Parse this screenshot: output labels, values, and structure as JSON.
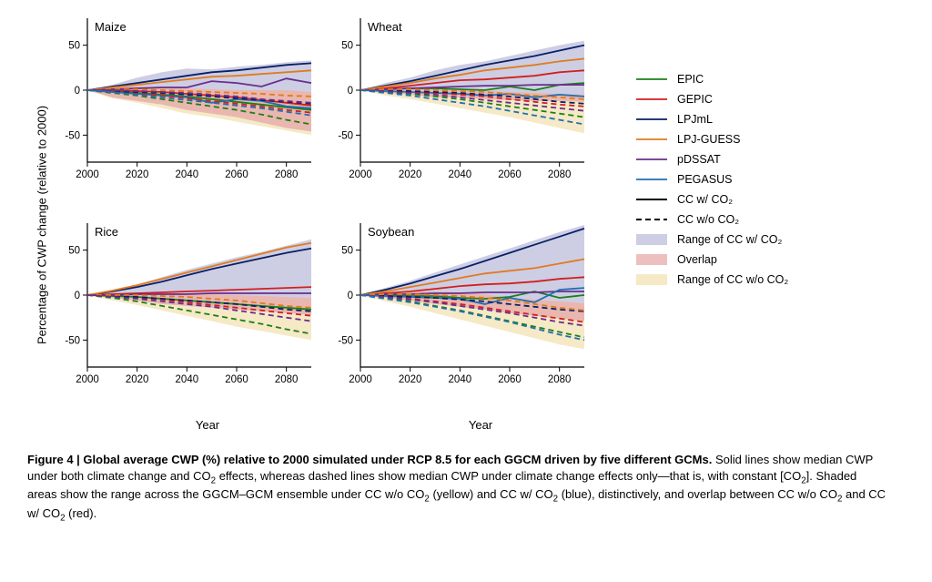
{
  "figure": {
    "ylabel": "Percentage of CWP change (relative to 2000)",
    "xlabel": "Year",
    "xlim": [
      2000,
      2090
    ],
    "ylim": [
      -80,
      80
    ],
    "xticks": [
      2000,
      2020,
      2040,
      2060,
      2080
    ],
    "yticks": [
      -50,
      0,
      50
    ],
    "x_values": [
      2000,
      2010,
      2020,
      2030,
      2040,
      2050,
      2060,
      2070,
      2080,
      2090
    ],
    "background_color": "#ffffff",
    "axis_color": "#000000",
    "line_width_solid": 1.8,
    "line_width_dashed": 1.8,
    "dash_pattern": "6,4",
    "panel_title_fontsize": 13,
    "tick_fontsize": 11.5,
    "label_fontsize": 13,
    "models": {
      "EPIC": {
        "color": "#1b7f1b"
      },
      "GEPIC": {
        "color": "#d21f1f"
      },
      "LPJmL": {
        "color": "#0a1f66"
      },
      "LPJ-GUESS": {
        "color": "#e07b1f"
      },
      "pDSSAT": {
        "color": "#6a2d8c"
      },
      "PEGASUS": {
        "color": "#1f6fb3"
      }
    },
    "ranges": {
      "cc_with_co2": {
        "fill": "#b8b9d9",
        "opacity": 0.7
      },
      "overlap": {
        "fill": "#e8a9a9",
        "opacity": 0.75
      },
      "cc_wo_co2": {
        "fill": "#f2e2b3",
        "opacity": 0.75
      }
    },
    "panels": [
      {
        "title": "Maize",
        "range_hi_with": [
          0,
          6,
          14,
          20,
          24,
          23,
          26,
          28,
          31,
          33
        ],
        "range_lo_with": [
          0,
          -8,
          -12,
          -16,
          -22,
          -26,
          -30,
          -36,
          -42,
          -46
        ],
        "range_hi_wo": [
          0,
          3,
          4,
          3,
          2,
          1,
          0,
          0,
          0,
          -2
        ],
        "range_lo_wo": [
          0,
          -9,
          -14,
          -20,
          -26,
          -30,
          -35,
          -40,
          -45,
          -50
        ],
        "solid": {
          "EPIC": [
            0,
            -1,
            -3,
            -5,
            -7,
            -10,
            -13,
            -16,
            -19,
            -22
          ],
          "GEPIC": [
            0,
            0,
            -1,
            -2,
            -4,
            -6,
            -8,
            -11,
            -14,
            -17
          ],
          "LPJmL": [
            0,
            4,
            8,
            12,
            16,
            20,
            22,
            25,
            28,
            30
          ],
          "LPJ-GUESS": [
            0,
            3,
            6,
            9,
            12,
            15,
            16,
            18,
            20,
            22
          ],
          "pDSSAT": [
            0,
            1,
            2,
            3,
            3,
            10,
            8,
            4,
            13,
            8
          ],
          "PEGASUS": [
            0,
            -2,
            -4,
            -6,
            -8,
            -14,
            -10,
            -12,
            -18,
            -20
          ]
        },
        "dashed": {
          "EPIC": [
            0,
            -3,
            -6,
            -10,
            -14,
            -18,
            -22,
            -27,
            -33,
            -38
          ],
          "GEPIC": [
            0,
            -2,
            -4,
            -6,
            -9,
            -12,
            -15,
            -18,
            -22,
            -25
          ],
          "LPJmL": [
            0,
            -1,
            -2,
            -3,
            -5,
            -7,
            -9,
            -11,
            -13,
            -15
          ],
          "LPJ-GUESS": [
            0,
            1,
            1,
            0,
            -1,
            -2,
            -3,
            -4,
            -6,
            -7
          ],
          "pDSSAT": [
            0,
            0,
            -1,
            -2,
            -3,
            -5,
            -7,
            -10,
            -12,
            -14
          ],
          "PEGASUS": [
            0,
            -2,
            -5,
            -8,
            -11,
            -14,
            -17,
            -20,
            -24,
            -28
          ]
        }
      },
      {
        "title": "Wheat",
        "range_hi_with": [
          0,
          8,
          14,
          22,
          28,
          32,
          38,
          44,
          50,
          55
        ],
        "range_lo_with": [
          0,
          -3,
          -5,
          -8,
          -8,
          -10,
          -11,
          -12,
          -12,
          -13
        ],
        "range_hi_wo": [
          0,
          2,
          2,
          1,
          0,
          -1,
          -2,
          -3,
          -4,
          -5
        ],
        "range_lo_wo": [
          0,
          -6,
          -10,
          -15,
          -20,
          -25,
          -30,
          -36,
          -42,
          -48
        ],
        "solid": {
          "EPIC": [
            0,
            1,
            2,
            2,
            1,
            0,
            4,
            0,
            6,
            8
          ],
          "GEPIC": [
            0,
            2,
            5,
            8,
            11,
            12,
            14,
            16,
            20,
            22
          ],
          "LPJmL": [
            0,
            5,
            10,
            16,
            22,
            28,
            33,
            38,
            44,
            50
          ],
          "LPJ-GUESS": [
            0,
            4,
            8,
            13,
            17,
            22,
            25,
            28,
            32,
            35
          ],
          "pDSSAT": [
            0,
            1,
            2,
            3,
            4,
            5,
            5,
            6,
            6,
            6
          ],
          "PEGASUS": [
            0,
            -1,
            -2,
            -3,
            -4,
            -6,
            -4,
            -8,
            -5,
            -7
          ]
        },
        "dashed": {
          "EPIC": [
            0,
            -2,
            -4,
            -7,
            -10,
            -14,
            -18,
            -22,
            -26,
            -30
          ],
          "GEPIC": [
            0,
            -1,
            -2,
            -3,
            -5,
            -7,
            -10,
            -13,
            -16,
            -18
          ],
          "LPJmL": [
            0,
            0,
            -1,
            -2,
            -3,
            -5,
            -7,
            -10,
            -13,
            -15
          ],
          "LPJ-GUESS": [
            0,
            1,
            1,
            0,
            -1,
            -2,
            -4,
            -6,
            -8,
            -10
          ],
          "pDSSAT": [
            0,
            -1,
            -3,
            -5,
            -8,
            -11,
            -14,
            -17,
            -20,
            -23
          ],
          "PEGASUS": [
            0,
            -3,
            -6,
            -10,
            -14,
            -18,
            -23,
            -28,
            -33,
            -38
          ]
        }
      },
      {
        "title": "Rice",
        "range_hi_with": [
          0,
          6,
          12,
          20,
          28,
          35,
          42,
          48,
          55,
          62
        ],
        "range_lo_with": [
          0,
          -3,
          -6,
          -10,
          -12,
          -14,
          -16,
          -18,
          -20,
          -22
        ],
        "range_hi_wo": [
          0,
          2,
          3,
          3,
          2,
          1,
          0,
          -1,
          -2,
          -3
        ],
        "range_lo_wo": [
          0,
          -6,
          -11,
          -17,
          -23,
          -29,
          -35,
          -40,
          -45,
          -50
        ],
        "solid": {
          "EPIC": [
            0,
            -1,
            -2,
            -4,
            -6,
            -8,
            -10,
            -12,
            -14,
            -16
          ],
          "GEPIC": [
            0,
            1,
            2,
            3,
            4,
            5,
            6,
            7,
            8,
            9
          ],
          "LPJmL": [
            0,
            4,
            9,
            15,
            22,
            29,
            35,
            41,
            47,
            52
          ],
          "LPJ-GUESS": [
            0,
            5,
            11,
            18,
            25,
            32,
            39,
            46,
            53,
            58
          ],
          "pDSSAT": [
            0,
            0,
            1,
            1,
            1,
            2,
            2,
            2,
            2,
            2
          ]
        },
        "dashed": {
          "EPIC": [
            0,
            -3,
            -7,
            -12,
            -17,
            -22,
            -27,
            -32,
            -38,
            -43
          ],
          "GEPIC": [
            0,
            -1,
            -3,
            -5,
            -8,
            -11,
            -14,
            -17,
            -20,
            -23
          ],
          "LPJmL": [
            0,
            -1,
            -2,
            -4,
            -6,
            -8,
            -10,
            -13,
            -16,
            -18
          ],
          "LPJ-GUESS": [
            0,
            0,
            0,
            -1,
            -2,
            -4,
            -6,
            -9,
            -12,
            -14
          ],
          "pDSSAT": [
            0,
            -2,
            -4,
            -7,
            -10,
            -13,
            -17,
            -21,
            -25,
            -29
          ]
        }
      },
      {
        "title": "Soybean",
        "range_hi_with": [
          0,
          8,
          16,
          25,
          34,
          43,
          52,
          61,
          70,
          78
        ],
        "range_lo_with": [
          0,
          -3,
          -6,
          -10,
          -13,
          -16,
          -20,
          -23,
          -26,
          -29
        ],
        "range_hi_wo": [
          0,
          3,
          4,
          4,
          3,
          1,
          -3,
          -5,
          -7,
          -9
        ],
        "range_lo_wo": [
          0,
          -7,
          -13,
          -20,
          -27,
          -34,
          -41,
          -48,
          -55,
          -60
        ],
        "solid": {
          "EPIC": [
            0,
            0,
            -1,
            -1,
            -3,
            -4,
            -2,
            4,
            -3,
            0
          ],
          "GEPIC": [
            0,
            2,
            4,
            7,
            10,
            12,
            13,
            15,
            18,
            20
          ],
          "LPJmL": [
            0,
            6,
            13,
            21,
            29,
            38,
            47,
            56,
            65,
            74
          ],
          "LPJ-GUESS": [
            0,
            4,
            9,
            14,
            19,
            24,
            27,
            30,
            35,
            40
          ],
          "pDSSAT": [
            0,
            1,
            1,
            2,
            2,
            3,
            3,
            3,
            4,
            4
          ],
          "PEGASUS": [
            0,
            -1,
            -2,
            -3,
            -4,
            -10,
            -3,
            -8,
            6,
            8
          ]
        },
        "dashed": {
          "EPIC": [
            0,
            -3,
            -7,
            -12,
            -17,
            -23,
            -29,
            -35,
            -41,
            -47
          ],
          "GEPIC": [
            0,
            -2,
            -4,
            -7,
            -10,
            -14,
            -18,
            -22,
            -26,
            -30
          ],
          "LPJmL": [
            0,
            -1,
            -2,
            -3,
            -5,
            -7,
            -10,
            -13,
            -16,
            -18
          ],
          "LPJ-GUESS": [
            0,
            1,
            1,
            0,
            -1,
            -3,
            -6,
            -10,
            -14,
            -17
          ],
          "pDSSAT": [
            0,
            -2,
            -5,
            -8,
            -12,
            -16,
            -20,
            -25,
            -30,
            -34
          ],
          "PEGASUS": [
            0,
            -4,
            -8,
            -13,
            -18,
            -24,
            -30,
            -37,
            -44,
            -50
          ]
        }
      }
    ]
  },
  "legend": {
    "items": [
      {
        "type": "line",
        "key": "EPIC",
        "label": "EPIC"
      },
      {
        "type": "line",
        "key": "GEPIC",
        "label": "GEPIC"
      },
      {
        "type": "line",
        "key": "LPJmL",
        "label": "LPJmL"
      },
      {
        "type": "line",
        "key": "LPJ-GUESS",
        "label": "LPJ-GUESS"
      },
      {
        "type": "line",
        "key": "pDSSAT",
        "label": "pDSSAT"
      },
      {
        "type": "line",
        "key": "PEGASUS",
        "label": "PEGASUS"
      },
      {
        "type": "solid-black",
        "label": "CC w/ CO₂"
      },
      {
        "type": "dashed-black",
        "label": "CC w/o CO₂"
      },
      {
        "type": "area",
        "key": "cc_with_co2",
        "label": "Range of CC w/ CO₂"
      },
      {
        "type": "area",
        "key": "overlap",
        "label": "Overlap"
      },
      {
        "type": "area",
        "key": "cc_wo_co2",
        "label": "Range of CC w/o CO₂"
      }
    ]
  },
  "caption": {
    "title": "Figure 4 | Global average CWP (%) relative to 2000 simulated under RCP 8.5 for each GGCM driven by five different GCMs.",
    "body_html": "Solid lines show median CWP under both climate change and CO<sub>2</sub> effects, whereas dashed lines show median CWP under climate change effects only—that is, with constant [CO<sub>2</sub>]. Shaded areas show the range across the GGCM–GCM ensemble under CC w/o CO<sub>2</sub> (yellow) and CC w/ CO<sub>2</sub> (blue), distinctively, and overlap between CC w/o CO<sub>2</sub> and CC w/ CO<sub>2</sub> (red)."
  }
}
